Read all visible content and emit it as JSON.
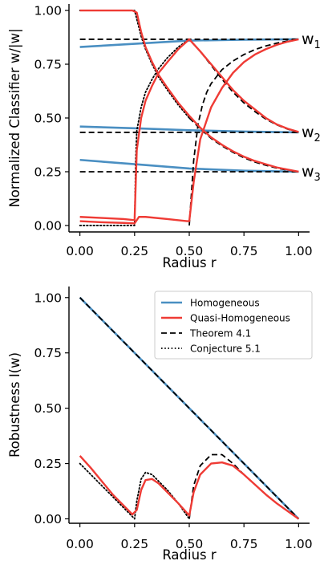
{
  "chart_data": [
    {
      "type": "line",
      "xlabel": "Radius r",
      "ylabel": "Normalized Classifier w/|w|",
      "xlim": [
        -0.05,
        1.05
      ],
      "ylim": [
        -0.03,
        1.03
      ],
      "xticks": [
        "0.00",
        "0.25",
        "0.50",
        "0.75",
        "1.00"
      ],
      "yticks": [
        "0.00",
        "0.25",
        "0.50",
        "0.75",
        "1.00"
      ],
      "grid": false,
      "right_labels": [
        {
          "text": "w",
          "sub": "1",
          "y": 0.866
        },
        {
          "text": "w",
          "sub": "2",
          "y": 0.433
        },
        {
          "text": "w",
          "sub": "3",
          "y": 0.25
        }
      ],
      "series": [
        {
          "role": "homogeneous",
          "color": "#4a8fc2",
          "style": "solid",
          "x": [
            0,
            0.25,
            0.5,
            0.75,
            1.0
          ],
          "y": [
            0.83,
            0.845,
            0.86,
            0.864,
            0.866
          ]
        },
        {
          "role": "homogeneous",
          "color": "#4a8fc2",
          "style": "solid",
          "x": [
            0,
            0.25,
            0.5,
            0.75,
            1.0
          ],
          "y": [
            0.46,
            0.452,
            0.443,
            0.437,
            0.433
          ]
        },
        {
          "role": "homogeneous",
          "color": "#4a8fc2",
          "style": "solid",
          "x": [
            0,
            0.25,
            0.5,
            0.75,
            1.0
          ],
          "y": [
            0.305,
            0.285,
            0.265,
            0.255,
            0.25
          ]
        },
        {
          "role": "theorem",
          "color": "#000000",
          "style": "dashed",
          "x": [
            0,
            1.0
          ],
          "y": [
            0.866,
            0.866
          ]
        },
        {
          "role": "theorem",
          "color": "#000000",
          "style": "dashed",
          "x": [
            0,
            1.0
          ],
          "y": [
            0.433,
            0.433
          ]
        },
        {
          "role": "theorem",
          "color": "#000000",
          "style": "dashed",
          "x": [
            0,
            1.0
          ],
          "y": [
            0.25,
            0.25
          ]
        },
        {
          "role": "theorem",
          "color": "#000000",
          "style": "dashed",
          "x": [
            0.5,
            0.52,
            0.54,
            0.56,
            0.58,
            0.6,
            0.65,
            0.7,
            0.75,
            0.8,
            0.85,
            0.9,
            0.95,
            1.0
          ],
          "y": [
            0.0,
            0.3,
            0.47,
            0.56,
            0.62,
            0.66,
            0.725,
            0.765,
            0.795,
            0.818,
            0.835,
            0.848,
            0.858,
            0.866
          ]
        },
        {
          "role": "theorem",
          "color": "#000000",
          "style": "dashed",
          "x": [
            0.5,
            0.55,
            0.6,
            0.65,
            0.7,
            0.75,
            0.8,
            0.85,
            0.9,
            0.95,
            1.0
          ],
          "y": [
            0.866,
            0.81,
            0.745,
            0.68,
            0.62,
            0.57,
            0.53,
            0.495,
            0.468,
            0.448,
            0.433
          ]
        },
        {
          "role": "theorem",
          "color": "#000000",
          "style": "dashed",
          "x": [
            0.5,
            0.55,
            0.6,
            0.65,
            0.7,
            0.75,
            0.8,
            0.85,
            0.9,
            0.95,
            1.0
          ],
          "y": [
            0.5,
            0.45,
            0.405,
            0.37,
            0.34,
            0.315,
            0.295,
            0.28,
            0.267,
            0.257,
            0.25
          ]
        },
        {
          "role": "conjecture",
          "color": "#000000",
          "style": "dotted",
          "x": [
            0,
            0.25,
            0.26,
            0.28,
            0.3,
            0.33,
            0.36,
            0.4,
            0.45,
            0.5
          ],
          "y": [
            1.0,
            1.0,
            0.96,
            0.88,
            0.82,
            0.75,
            0.69,
            0.63,
            0.56,
            0.5
          ]
        },
        {
          "role": "conjecture",
          "color": "#000000",
          "style": "dotted",
          "x": [
            0,
            0.25,
            0.255,
            0.26,
            0.28,
            0.3,
            0.33,
            0.36,
            0.4,
            0.45,
            0.5
          ],
          "y": [
            0.0,
            0.0,
            0.3,
            0.44,
            0.55,
            0.62,
            0.68,
            0.73,
            0.78,
            0.83,
            0.866
          ]
        },
        {
          "role": "quasi",
          "color": "#ef3b35",
          "style": "solid",
          "x": [
            0,
            0.2,
            0.24,
            0.26,
            0.28,
            0.3,
            0.33,
            0.36,
            0.4,
            0.45,
            0.5,
            0.55,
            0.6,
            0.65,
            0.7,
            0.75,
            0.8,
            0.85,
            0.9,
            0.95,
            1.0
          ],
          "y": [
            1.0,
            1.0,
            1.0,
            0.99,
            0.9,
            0.83,
            0.76,
            0.7,
            0.64,
            0.57,
            0.51,
            0.455,
            0.41,
            0.375,
            0.345,
            0.32,
            0.3,
            0.285,
            0.27,
            0.26,
            0.25
          ]
        },
        {
          "role": "quasi",
          "color": "#ef3b35",
          "style": "solid",
          "x": [
            0,
            0.1,
            0.2,
            0.25,
            0.26,
            0.28,
            0.3,
            0.33,
            0.36,
            0.4,
            0.45,
            0.5,
            0.55,
            0.6,
            0.65,
            0.7,
            0.75,
            0.8,
            0.85,
            0.9,
            0.95,
            1.0
          ],
          "y": [
            0.04,
            0.035,
            0.03,
            0.025,
            0.35,
            0.5,
            0.58,
            0.65,
            0.71,
            0.76,
            0.82,
            0.866,
            0.81,
            0.75,
            0.69,
            0.63,
            0.58,
            0.54,
            0.5,
            0.47,
            0.45,
            0.435
          ]
        },
        {
          "role": "quasi",
          "color": "#ef3b35",
          "style": "solid",
          "x": [
            0,
            0.1,
            0.2,
            0.25,
            0.27,
            0.3,
            0.4,
            0.49,
            0.5,
            0.52,
            0.55,
            0.6,
            0.65,
            0.7,
            0.75,
            0.8,
            0.85,
            0.9,
            0.95,
            1.0
          ],
          "y": [
            0.02,
            0.015,
            0.012,
            0.01,
            0.04,
            0.04,
            0.03,
            0.02,
            0.02,
            0.2,
            0.4,
            0.55,
            0.64,
            0.71,
            0.76,
            0.795,
            0.82,
            0.84,
            0.855,
            0.866
          ]
        }
      ]
    },
    {
      "type": "line",
      "xlabel": "Radius r",
      "ylabel": "Robustness I(w)",
      "xlim": [
        -0.05,
        1.05
      ],
      "ylim": [
        -0.02,
        1.05
      ],
      "xticks": [
        "0.00",
        "0.25",
        "0.50",
        "0.75",
        "1.00"
      ],
      "yticks": [
        "0.00",
        "0.25",
        "0.50",
        "0.75",
        "1.00"
      ],
      "grid": false,
      "legend": {
        "placement": "top-right",
        "entries": [
          {
            "label": "Homogeneous",
            "color": "#4a8fc2",
            "style": "solid"
          },
          {
            "label": "Quasi-Homogeneous",
            "color": "#ef3b35",
            "style": "solid"
          },
          {
            "label": "Theorem 4.1",
            "color": "#000000",
            "style": "dashed"
          },
          {
            "label": "Conjecture 5.1",
            "color": "#000000",
            "style": "dotted"
          }
        ]
      },
      "series": [
        {
          "role": "homogeneous",
          "color": "#4a8fc2",
          "style": "solid",
          "x": [
            0,
            1.0
          ],
          "y": [
            1.0,
            0.0
          ]
        },
        {
          "role": "theorem",
          "color": "#000000",
          "style": "dashed",
          "x": [
            0,
            1.0
          ],
          "y": [
            1.0,
            0.0
          ]
        },
        {
          "role": "theorem",
          "color": "#000000",
          "style": "dashed",
          "x": [
            0.5,
            0.52,
            0.55,
            0.6,
            0.65,
            0.7,
            0.75,
            0.8,
            0.85,
            0.9,
            0.95,
            1.0
          ],
          "y": [
            0.0,
            0.15,
            0.24,
            0.29,
            0.29,
            0.25,
            0.2,
            0.155,
            0.11,
            0.07,
            0.035,
            0.0
          ]
        },
        {
          "role": "conjecture",
          "color": "#000000",
          "style": "dotted",
          "x": [
            0,
            0.05,
            0.1,
            0.15,
            0.2,
            0.25,
            0.26,
            0.28,
            0.3,
            0.33,
            0.36,
            0.4,
            0.45,
            0.5
          ],
          "y": [
            0.25,
            0.2,
            0.15,
            0.1,
            0.05,
            0.0,
            0.08,
            0.18,
            0.21,
            0.2,
            0.17,
            0.13,
            0.07,
            0.0
          ]
        },
        {
          "role": "quasi",
          "color": "#ef3b35",
          "style": "solid",
          "x": [
            0,
            0.05,
            0.1,
            0.15,
            0.2,
            0.24,
            0.26,
            0.28,
            0.3,
            0.33,
            0.36,
            0.4,
            0.45,
            0.5,
            0.52,
            0.55,
            0.6,
            0.65,
            0.7,
            0.75,
            0.8,
            0.85,
            0.9,
            0.95,
            1.0
          ],
          "y": [
            0.285,
            0.23,
            0.17,
            0.11,
            0.06,
            0.02,
            0.04,
            0.13,
            0.175,
            0.18,
            0.16,
            0.12,
            0.07,
            0.015,
            0.12,
            0.2,
            0.25,
            0.255,
            0.24,
            0.2,
            0.155,
            0.11,
            0.07,
            0.035,
            0.0
          ]
        }
      ]
    }
  ]
}
